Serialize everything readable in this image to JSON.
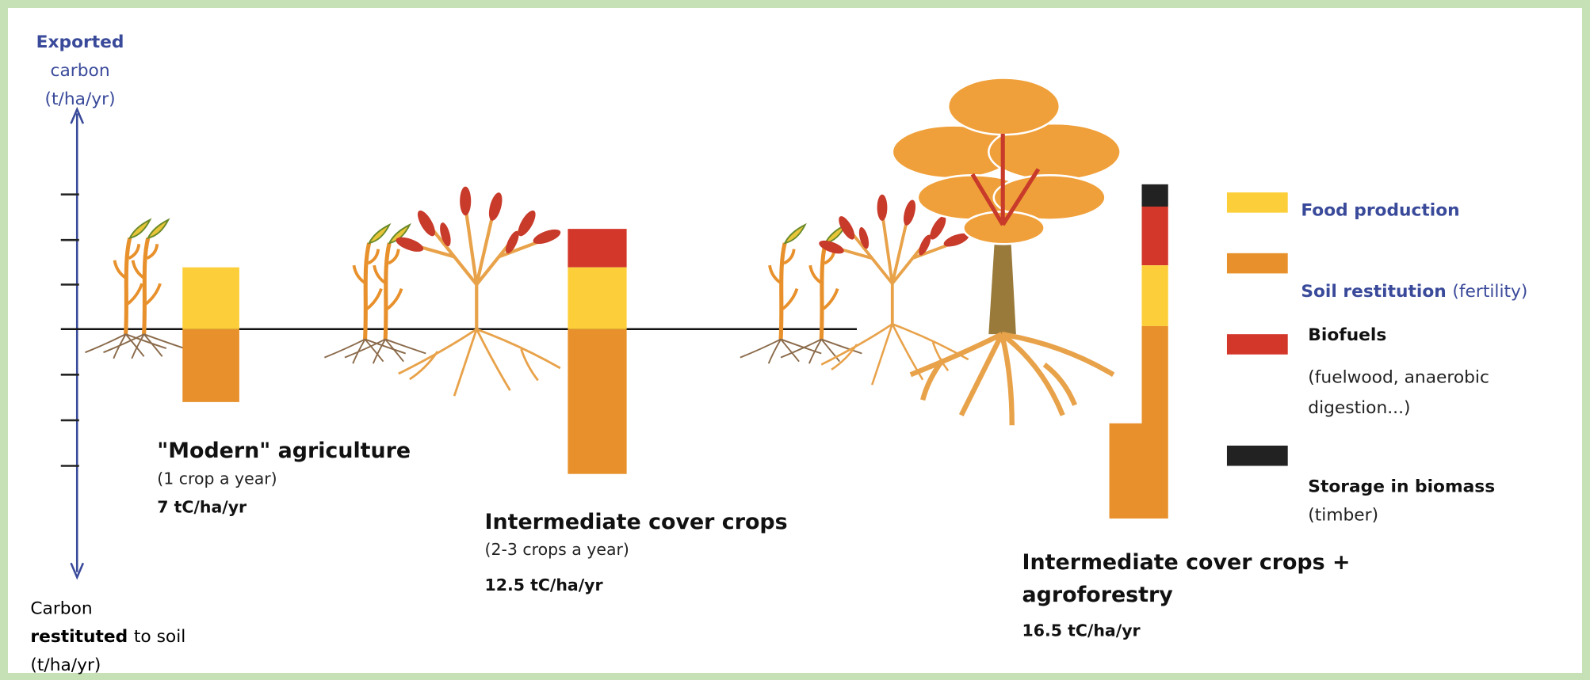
{
  "axis": {
    "top": [
      "Exported",
      "carbon",
      "(t/ha/yr)"
    ],
    "bottom": {
      "line1": "Carbon",
      "line2_bold": "restituted",
      "line2_rest": "to soil",
      "line3": "(t/ha/yr)"
    }
  },
  "systems": [
    {
      "title": [
        "\"Modern\" agriculture"
      ],
      "subtitle": "(1 crop a year)",
      "total": "7 tC/ha/yr"
    },
    {
      "title": [
        "Intermediate cover crops"
      ],
      "subtitle": "(2-3 crops a year)",
      "total": "12.5 tC/ha/yr"
    },
    {
      "title": [
        "Intermediate cover crops +",
        "agroforestry"
      ],
      "total": "16.5 tC/ha/yr"
    }
  ],
  "legend": [
    {
      "label": "Food production"
    },
    {
      "label": "Soil restitution",
      "note": "(fertility)"
    },
    {
      "label": "Biofuels",
      "notes": [
        "(fuelwood, anaerobic",
        "digestion...)"
      ]
    },
    {
      "label": "Storage in biomass",
      "notes": [
        "(timber)"
      ]
    }
  ]
}
